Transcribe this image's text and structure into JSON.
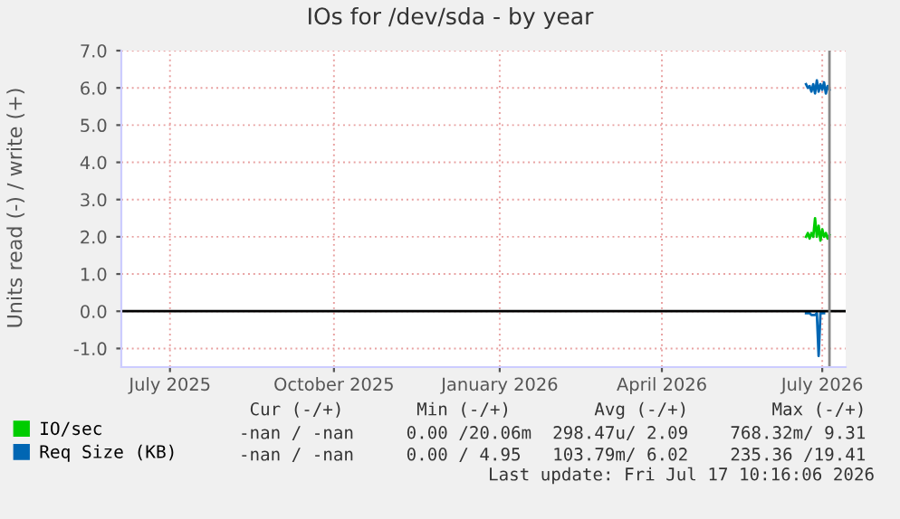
{
  "chart_data": {
    "type": "line",
    "title": "IOs for /dev/sda - by year",
    "ylabel": "Units read (-) / write (+)",
    "x": [
      "2026-07-04",
      "2026-07-05",
      "2026-07-06",
      "2026-07-07",
      "2026-07-08",
      "2026-07-09",
      "2026-07-10",
      "2026-07-11",
      "2026-07-12",
      "2026-07-13",
      "2026-07-14",
      "2026-07-15",
      "2026-07-16",
      "2026-07-17"
    ],
    "series": [
      {
        "name": "IO/sec",
        "color": "#00cc00",
        "values": [
          2.0,
          2.1,
          1.95,
          2.1,
          2.0,
          2.5,
          2.0,
          2.3,
          1.9,
          2.2,
          2.0,
          2.1,
          1.95,
          2.05
        ]
      },
      {
        "name": "Req Size (KB)",
        "color": "#0066b3",
        "values": [
          6.1,
          6.0,
          6.05,
          5.9,
          6.1,
          5.85,
          6.2,
          5.9,
          6.1,
          5.95,
          6.15,
          5.85,
          6.05,
          5.95
        ]
      },
      {
        "color": "#0066b3",
        "values": [
          -0.05,
          -0.05,
          -0.05,
          -0.1,
          -0.1,
          -0.1,
          -0.05,
          -1.2,
          -0.05,
          -0.05,
          -0.05,
          null,
          null,
          null
        ]
      }
    ],
    "xlim": [
      "2025-06-19",
      "2026-07-26"
    ],
    "xticks": [
      {
        "value": "2025-07-16",
        "label": "July 2025"
      },
      {
        "value": "2025-10-15",
        "label": "October 2025"
      },
      {
        "value": "2026-01-15",
        "label": "January 2026"
      },
      {
        "value": "2026-04-15",
        "label": "April 2026"
      },
      {
        "value": "2026-07-13",
        "label": "July 2026"
      }
    ],
    "ylim": [
      -1.5,
      7.0
    ],
    "yticks": [
      {
        "value": -1,
        "label": "-1.0"
      },
      {
        "value": 0,
        "label": "0.0"
      },
      {
        "value": 1,
        "label": "1.0"
      },
      {
        "value": 2,
        "label": "2.0"
      },
      {
        "value": 3,
        "label": "3.0"
      },
      {
        "value": 4,
        "label": "4.0"
      },
      {
        "value": 5,
        "label": "5.0"
      },
      {
        "value": 6,
        "label": "6.0"
      },
      {
        "value": 7,
        "label": "7.0"
      }
    ],
    "grid": true,
    "legend": "bottom left",
    "ref_lines": [
      {
        "axis": "y",
        "value": 0,
        "color": "#000000"
      },
      {
        "axis": "x",
        "value": "2026-07-17",
        "color": "#888888"
      }
    ],
    "annotations": [
      " Cur (-/+)       Min (-/+)        Avg (-/+)        Max (-/+)",
      "-nan / -nan     0.00 /20.06m  298.47u/ 2.09    768.32m/ 9.31",
      "-nan / -nan     0.00 / 4.95   103.79m/ 6.02    235.36 /19.41",
      "Last update: Fri Jul 17 10:16:06 2026"
    ]
  }
}
